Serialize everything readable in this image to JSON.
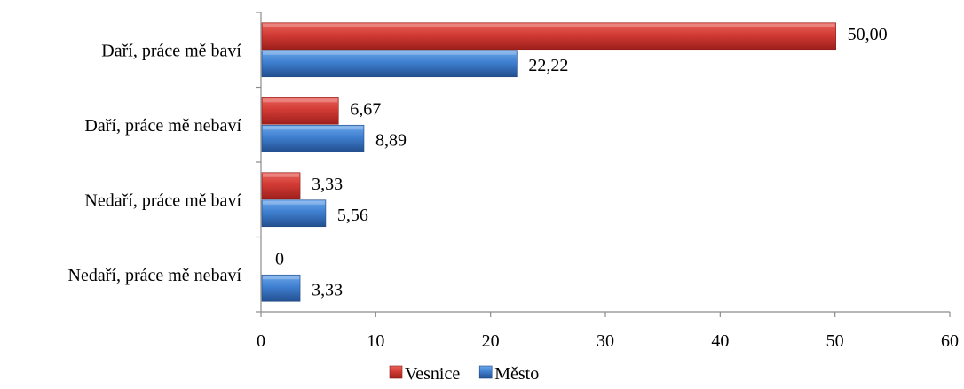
{
  "chart_data": {
    "type": "bar",
    "orientation": "horizontal",
    "categories": [
      "Daří, práce mě baví",
      "Daří, práce mě nebaví",
      "Nedaří, práce mě baví",
      "Nedaří, práce mě nebaví"
    ],
    "series": [
      {
        "name": "Vesnice",
        "color": "#c0392b",
        "values": [
          50.0,
          6.67,
          3.33,
          0
        ],
        "labels": [
          "50,00",
          "6,67",
          "3,33",
          "0"
        ]
      },
      {
        "name": "Město",
        "color": "#3a78c9",
        "values": [
          22.22,
          8.89,
          5.56,
          3.33
        ],
        "labels": [
          "22,22",
          "8,89",
          "5,56",
          "3,33"
        ]
      }
    ],
    "xlim": [
      0,
      60
    ],
    "xticks": [
      0,
      10,
      20,
      30,
      40,
      50,
      60
    ],
    "xtick_labels": [
      "0",
      "10",
      "20",
      "30",
      "40",
      "50",
      "60"
    ],
    "grid": false,
    "legend_position": "bottom",
    "title": "",
    "xlabel": "",
    "ylabel": ""
  }
}
